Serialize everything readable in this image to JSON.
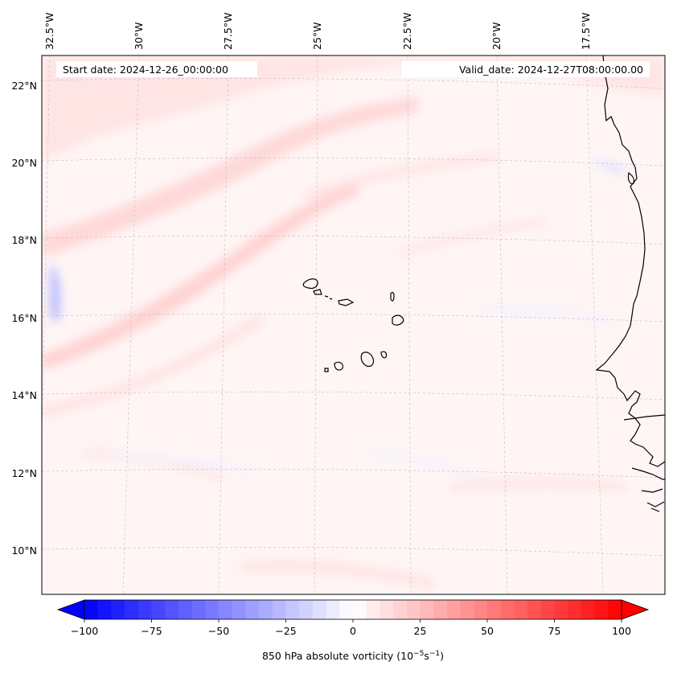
{
  "map": {
    "start_label": "Start date: 2024-12-26_00:00:00",
    "valid_label": "Valid_date: 2024-12-27T08:00:00.00",
    "lon_labels": [
      "32.5°W",
      "30°W",
      "27.5°W",
      "25°W",
      "22.5°W",
      "20°W",
      "17.5°W"
    ],
    "lat_labels": [
      "22°N",
      "20°N",
      "18°N",
      "16°N",
      "14°N",
      "12°N",
      "10°N"
    ],
    "coastline_color": "#000000",
    "gridline_color": "#bdbdbd"
  },
  "colorbar": {
    "label_main": "850 hPa absolute vorticity (10",
    "label_exp1": "−5",
    "label_mid": "s",
    "label_exp2": "−1",
    "label_end": ")",
    "ticks": [
      "−100",
      "−75",
      "−50",
      "−25",
      "0",
      "25",
      "50",
      "75",
      "100"
    ],
    "range": [
      -100,
      100
    ],
    "step": 5,
    "colormap": "bwr",
    "low_color": "#0000ff",
    "mid_color": "#ffffff",
    "high_color": "#ff0000"
  }
}
